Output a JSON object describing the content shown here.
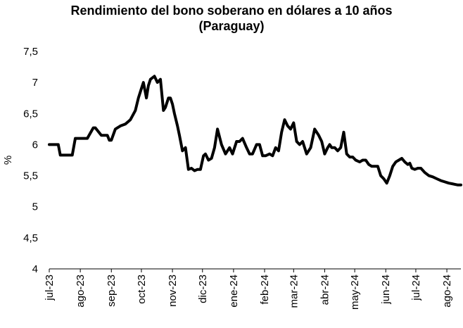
{
  "chart_data": {
    "type": "line",
    "title_line1": "Rendimiento del bono soberano en dólares a 10 años",
    "title_line2": "(Paraguay)",
    "xlabel": "",
    "ylabel": "%",
    "ylim": [
      4,
      7.5
    ],
    "y_ticks": [
      "4",
      "4,5",
      "5",
      "5,5",
      "6",
      "6,5",
      "7",
      "7,5"
    ],
    "x_ticks": [
      "jul-23",
      "ago-23",
      "sep-23",
      "oct-23",
      "nov-23",
      "dic-23",
      "ene-24",
      "feb-24",
      "mar-24",
      "abr-24",
      "may-24",
      "jun-24",
      "jul-24",
      "ago-24"
    ],
    "grid": false,
    "legend": "none",
    "series_color": "#000000",
    "series": [
      {
        "x": [
          "2023-07-01",
          "2023-07-05",
          "2023-07-10",
          "2023-07-12",
          "2023-07-18",
          "2023-07-24",
          "2023-07-27",
          "2023-08-02",
          "2023-08-08",
          "2023-08-14",
          "2023-08-16",
          "2023-08-22",
          "2023-08-28",
          "2023-08-30",
          "2023-09-01",
          "2023-09-05",
          "2023-09-10",
          "2023-09-15",
          "2023-09-20",
          "2023-09-25",
          "2023-09-28",
          "2023-10-01",
          "2023-10-03",
          "2023-10-06",
          "2023-10-08",
          "2023-10-10",
          "2023-10-14",
          "2023-10-17",
          "2023-10-20",
          "2023-10-23",
          "2023-10-25",
          "2023-10-28",
          "2023-10-30",
          "2023-11-01",
          "2023-11-03",
          "2023-11-06",
          "2023-11-08",
          "2023-11-11",
          "2023-11-14",
          "2023-11-17",
          "2023-11-20",
          "2023-11-23",
          "2023-11-26",
          "2023-11-29",
          "2023-12-02",
          "2023-12-04",
          "2023-12-07",
          "2023-12-10",
          "2023-12-13",
          "2023-12-16",
          "2023-12-20",
          "2023-12-24",
          "2023-12-28",
          "2023-12-31",
          "2024-01-04",
          "2024-01-07",
          "2024-01-10",
          "2024-01-14",
          "2024-01-17",
          "2024-01-20",
          "2024-01-24",
          "2024-01-27",
          "2024-01-30",
          "2024-02-02",
          "2024-02-06",
          "2024-02-09",
          "2024-02-12",
          "2024-02-15",
          "2024-02-18",
          "2024-02-21",
          "2024-02-24",
          "2024-02-27",
          "2024-03-01",
          "2024-03-04",
          "2024-03-07",
          "2024-03-10",
          "2024-03-14",
          "2024-03-18",
          "2024-03-22",
          "2024-03-26",
          "2024-03-29",
          "2024-04-01",
          "2024-04-04",
          "2024-04-06",
          "2024-04-08",
          "2024-04-11",
          "2024-04-14",
          "2024-04-17",
          "2024-04-20",
          "2024-04-23",
          "2024-04-26",
          "2024-04-29",
          "2024-05-02",
          "2024-05-06",
          "2024-05-09",
          "2024-05-12",
          "2024-05-15",
          "2024-05-18",
          "2024-05-21",
          "2024-05-24",
          "2024-05-27",
          "2024-05-30",
          "2024-06-02",
          "2024-06-05",
          "2024-06-08",
          "2024-06-11",
          "2024-06-14",
          "2024-06-17",
          "2024-06-20",
          "2024-06-23",
          "2024-06-25",
          "2024-06-27",
          "2024-06-30",
          "2024-07-03",
          "2024-07-06",
          "2024-07-10",
          "2024-07-14",
          "2024-07-18",
          "2024-07-22",
          "2024-07-26",
          "2024-07-30",
          "2024-08-03",
          "2024-08-06",
          "2024-08-09",
          "2024-08-12",
          "2024-08-15"
        ],
        "y": [
          6.0,
          6.0,
          6.0,
          5.83,
          5.83,
          5.83,
          6.1,
          6.1,
          6.1,
          6.27,
          6.27,
          6.15,
          6.15,
          6.07,
          6.07,
          6.25,
          6.3,
          6.33,
          6.4,
          6.55,
          6.75,
          6.9,
          7.0,
          6.75,
          6.95,
          7.05,
          7.1,
          7.0,
          7.05,
          6.55,
          6.6,
          6.75,
          6.75,
          6.65,
          6.5,
          6.3,
          6.15,
          5.9,
          5.95,
          5.6,
          5.62,
          5.58,
          5.6,
          5.6,
          5.82,
          5.85,
          5.75,
          5.78,
          5.95,
          6.25,
          6.0,
          5.85,
          5.95,
          5.85,
          6.05,
          6.05,
          6.1,
          5.95,
          5.85,
          5.85,
          6.0,
          6.0,
          5.82,
          5.82,
          5.85,
          5.82,
          5.95,
          5.9,
          6.2,
          6.4,
          6.3,
          6.25,
          6.35,
          6.05,
          6.0,
          6.05,
          5.85,
          5.95,
          6.25,
          6.15,
          6.05,
          5.85,
          5.95,
          6.0,
          5.95,
          5.95,
          5.9,
          5.95,
          6.2,
          5.85,
          5.8,
          5.8,
          5.75,
          5.72,
          5.75,
          5.75,
          5.68,
          5.65,
          5.65,
          5.65,
          5.5,
          5.45,
          5.38,
          5.5,
          5.65,
          5.72,
          5.75,
          5.78,
          5.72,
          5.68,
          5.7,
          5.62,
          5.6,
          5.62,
          5.62,
          5.55,
          5.5,
          5.48,
          5.45,
          5.42,
          5.4,
          5.38,
          5.37,
          5.36,
          5.35,
          5.35
        ]
      }
    ]
  }
}
